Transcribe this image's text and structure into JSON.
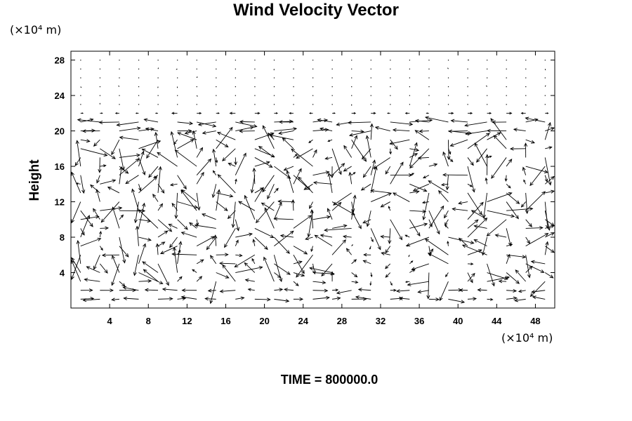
{
  "chart_data": {
    "type": "vector-field",
    "title": "Wind Velocity Vector",
    "ylabel": "Height",
    "xlabel": "",
    "x_unit": "(×10⁴ m)",
    "y_unit": "(×10⁴ m)",
    "xlim": [
      0,
      50
    ],
    "ylim": [
      0,
      29
    ],
    "x_ticks": [
      4,
      8,
      12,
      16,
      20,
      24,
      28,
      32,
      36,
      40,
      44,
      48
    ],
    "y_ticks": [
      4,
      8,
      12,
      16,
      20,
      24,
      28
    ],
    "grid_x": [
      1,
      49,
      2
    ],
    "grid_y": [
      1,
      28,
      1
    ],
    "grid": false,
    "footer": "TIME = 800000.0",
    "vector_color": "#000000"
  }
}
